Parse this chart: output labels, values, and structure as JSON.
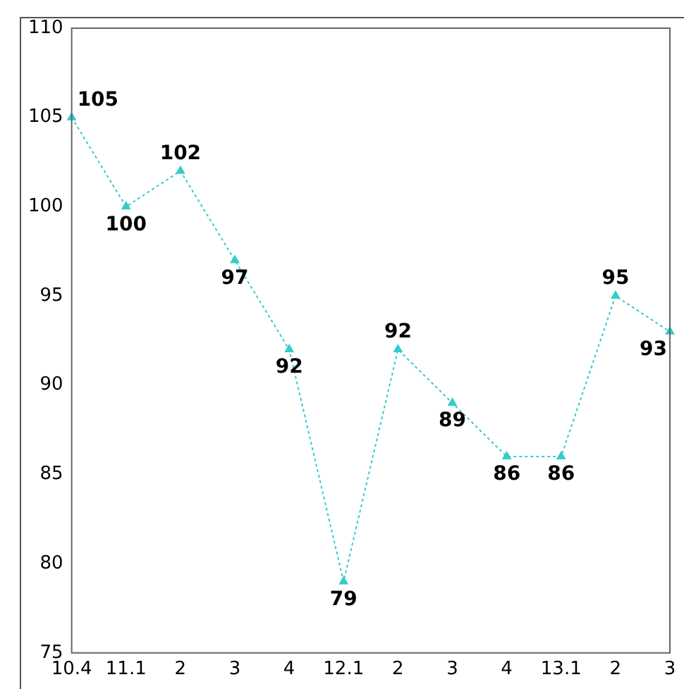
{
  "chart_data": {
    "type": "line",
    "categories": [
      "10.4",
      "11.1",
      "2",
      "3",
      "4",
      "12.1",
      "2",
      "3",
      "4",
      "13.1",
      "2",
      "3"
    ],
    "series": [
      {
        "color": "#33cccc",
        "values": [
          105,
          100,
          102,
          97,
          92,
          79,
          92,
          89,
          86,
          86,
          95,
          93
        ]
      }
    ],
    "ylim": [
      75,
      110
    ],
    "yticks": [
      75,
      80,
      85,
      90,
      95,
      100,
      105,
      110
    ],
    "grid": false,
    "legend": false,
    "marker": "triangle",
    "line_style": "dotted",
    "data_labels": true
  }
}
